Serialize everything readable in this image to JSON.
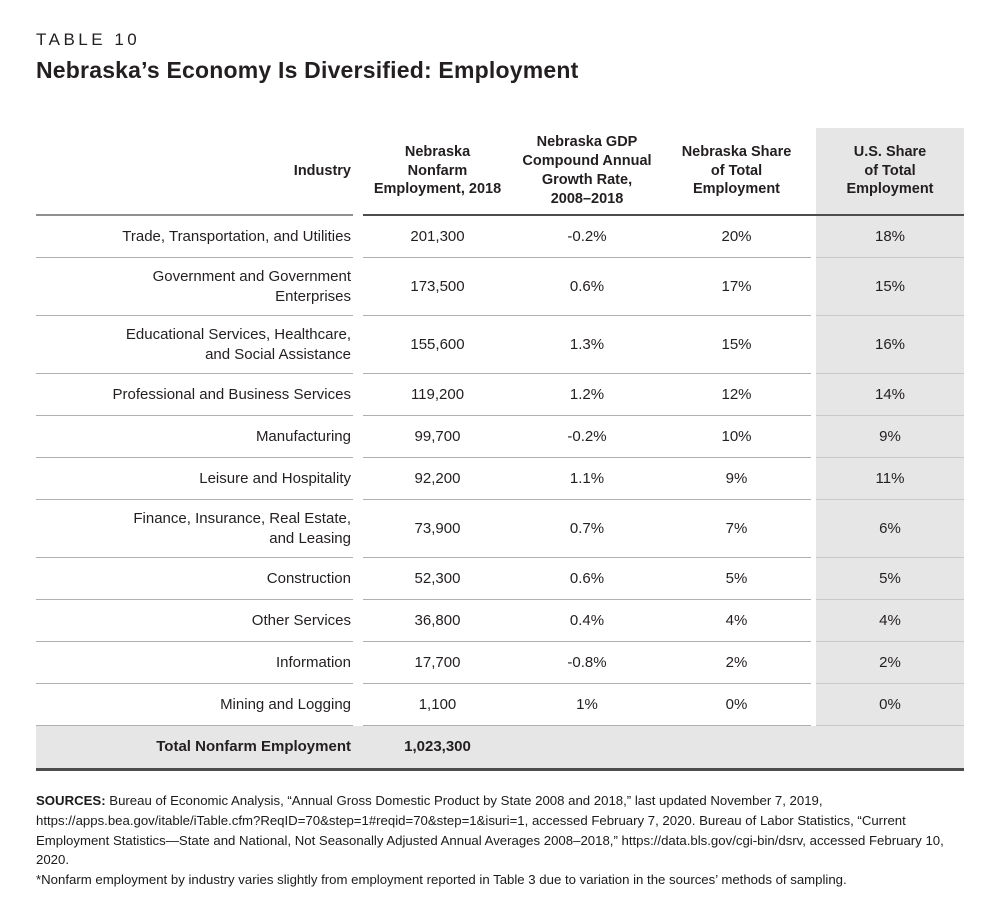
{
  "header": {
    "kicker": "TABLE 10",
    "title": "Nebraska’s Economy Is Diversified: Employment"
  },
  "table": {
    "columns": [
      {
        "label": "Industry"
      },
      {
        "label": "Nebraska\nNonfarm\nEmployment, 2018"
      },
      {
        "label": "Nebraska GDP\nCompound Annual\nGrowth Rate,\n2008–2018"
      },
      {
        "label": "Nebraska Share\nof Total\nEmployment"
      },
      {
        "label": "U.S. Share\nof Total\nEmployment"
      }
    ],
    "rows": [
      {
        "industry": "Trade, Transportation, and Utilities",
        "employment": "201,300",
        "growth": "-0.2%",
        "ne_share": "20%",
        "us_share": "18%"
      },
      {
        "industry": "Government and Government\nEnterprises",
        "employment": "173,500",
        "growth": "0.6%",
        "ne_share": "17%",
        "us_share": "15%"
      },
      {
        "industry": "Educational Services, Healthcare,\nand Social Assistance",
        "employment": "155,600",
        "growth": "1.3%",
        "ne_share": "15%",
        "us_share": "16%"
      },
      {
        "industry": "Professional and Business Services",
        "employment": "119,200",
        "growth": "1.2%",
        "ne_share": "12%",
        "us_share": "14%"
      },
      {
        "industry": "Manufacturing",
        "employment": "99,700",
        "growth": "-0.2%",
        "ne_share": "10%",
        "us_share": "9%"
      },
      {
        "industry": "Leisure and Hospitality",
        "employment": "92,200",
        "growth": "1.1%",
        "ne_share": "9%",
        "us_share": "11%"
      },
      {
        "industry": "Finance, Insurance, Real Estate,\nand Leasing",
        "employment": "73,900",
        "growth": "0.7%",
        "ne_share": "7%",
        "us_share": "6%"
      },
      {
        "industry": "Construction",
        "employment": "52,300",
        "growth": "0.6%",
        "ne_share": "5%",
        "us_share": "5%"
      },
      {
        "industry": "Other Services",
        "employment": "36,800",
        "growth": "0.4%",
        "ne_share": "4%",
        "us_share": "4%"
      },
      {
        "industry": "Information",
        "employment": "17,700",
        "growth": "-0.8%",
        "ne_share": "2%",
        "us_share": "2%"
      },
      {
        "industry": "Mining and Logging",
        "employment": "1,100",
        "growth": "1%",
        "ne_share": "0%",
        "us_share": "0%"
      }
    ],
    "total": {
      "label": "Total Nonfarm Employment",
      "value": "1,023,300"
    }
  },
  "footer": {
    "sources_label": "SOURCES:",
    "sources_text": "Bureau of Economic Analysis, “Annual Gross Domestic Product by State 2008 and 2018,” last updated November 7, 2019, https://apps.bea.gov/itable/iTable.cfm?ReqID=70&step=1#reqid=70&step=1&isuri=1, accessed February 7, 2020. Bureau of Labor Statistics, “Current Employment Statistics—State and National, Not Seasonally Adjusted Annual Averages 2008–2018,” https://data.bls.gov/cgi-bin/dsrv, accessed February 10, 2020.",
    "footnote": "*Nonfarm employment by industry varies slightly from employment reported in Table 3 due to variation in the sources’ methods of sampling."
  },
  "colors": {
    "shade": "#e6e6e6",
    "rule-light": "#b0b0b0",
    "rule-mid": "#8f8f8f",
    "rule-dark": "#4d4d4d",
    "text": "#231f20"
  }
}
